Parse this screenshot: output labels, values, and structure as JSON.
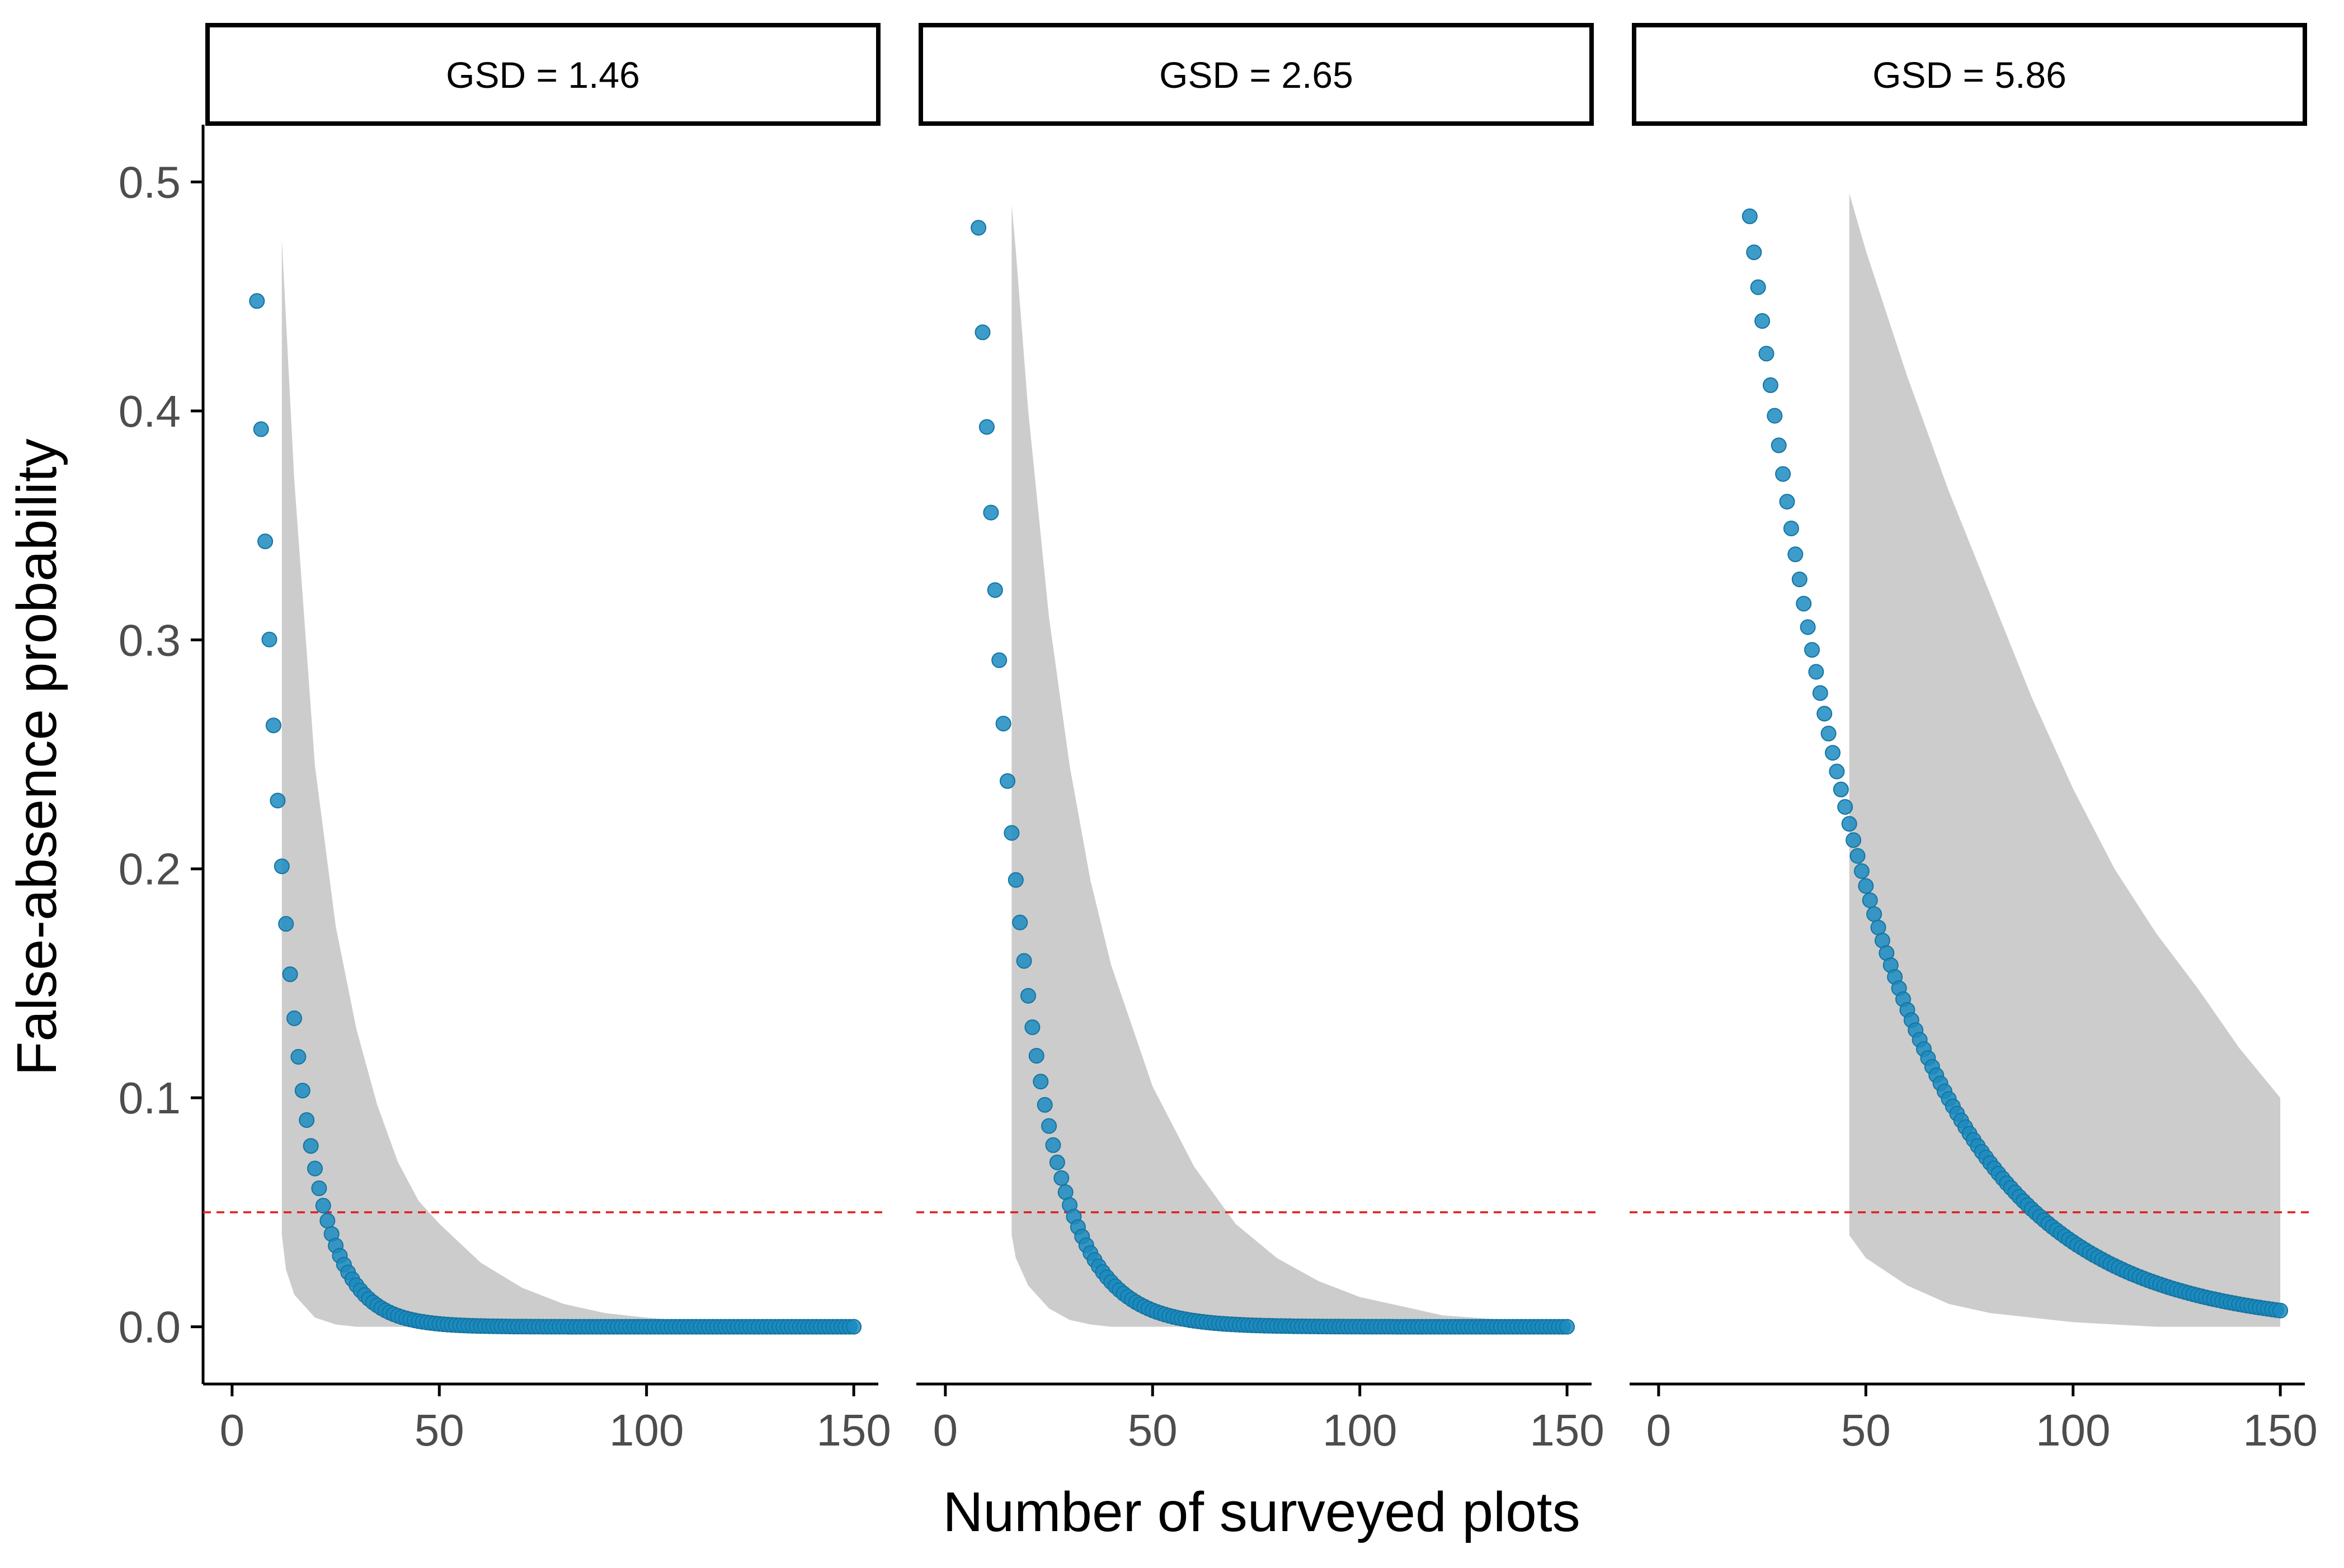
{
  "chart_data": {
    "type": "scatter",
    "xlabel": "Number of surveyed plots",
    "ylabel": "False-absence probability",
    "xlim": [
      -7,
      157
    ],
    "ylim": [
      -0.025,
      0.525
    ],
    "x_ticks": [
      0,
      50,
      100,
      150
    ],
    "x_tick_labels": [
      "0",
      "50",
      "100",
      "150"
    ],
    "y_ticks": [
      0.0,
      0.1,
      0.2,
      0.3,
      0.4,
      0.5
    ],
    "y_tick_labels": [
      "0.0",
      "0.1",
      "0.2",
      "0.3",
      "0.4",
      "0.5"
    ],
    "grid": false,
    "reference_line": {
      "y": 0.05,
      "color": "#e41a1c",
      "style": "dashed"
    },
    "colors": {
      "points": "#1b8bbf",
      "band": "#cccccc",
      "axis": "#000000",
      "tick_text": "#4d4d4d"
    },
    "panels": [
      {
        "label": "GSD = 1.46",
        "points": {
          "x_start": 6,
          "x_end": 150,
          "y_at_start": 0.448,
          "decay_per_plot": 0.1335
        },
        "band": {
          "x": [
            12,
            13,
            15,
            20,
            25,
            30,
            35,
            40,
            45,
            50,
            60,
            70,
            80,
            90,
            100,
            120,
            150
          ],
          "upper": [
            0.475,
            0.44,
            0.37,
            0.245,
            0.175,
            0.13,
            0.097,
            0.072,
            0.055,
            0.045,
            0.028,
            0.017,
            0.01,
            0.006,
            0.004,
            0.001,
            0.0
          ],
          "lower": [
            0.04,
            0.025,
            0.014,
            0.004,
            0.001,
            0.0,
            0.0,
            0.0,
            0.0,
            0.0,
            0.0,
            0.0,
            0.0,
            0.0,
            0.0,
            0.0,
            0.0
          ]
        }
      },
      {
        "label": "GSD = 2.65",
        "points": {
          "x_start": 8,
          "x_end": 150,
          "y_at_start": 0.48,
          "decay_per_plot": 0.1
        },
        "band": {
          "x": [
            16,
            17,
            20,
            25,
            30,
            35,
            40,
            50,
            60,
            70,
            80,
            90,
            100,
            120,
            150
          ],
          "upper": [
            0.49,
            0.47,
            0.4,
            0.31,
            0.245,
            0.195,
            0.158,
            0.105,
            0.07,
            0.045,
            0.03,
            0.02,
            0.013,
            0.005,
            0.001
          ],
          "lower": [
            0.04,
            0.03,
            0.018,
            0.008,
            0.003,
            0.001,
            0.0,
            0.0,
            0.0,
            0.0,
            0.0,
            0.0,
            0.0,
            0.0,
            0.0
          ]
        }
      },
      {
        "label": "GSD = 5.86",
        "points": {
          "x_start": 22,
          "x_end": 150,
          "y_at_start": 0.485,
          "decay_per_plot": 0.033
        },
        "band": {
          "x": [
            46,
            50,
            60,
            70,
            80,
            90,
            100,
            110,
            120,
            130,
            140,
            150
          ],
          "upper": [
            0.495,
            0.47,
            0.415,
            0.365,
            0.32,
            0.275,
            0.235,
            0.2,
            0.172,
            0.148,
            0.122,
            0.1
          ],
          "lower": [
            0.04,
            0.03,
            0.018,
            0.01,
            0.006,
            0.004,
            0.002,
            0.001,
            0.0,
            0.0,
            0.0,
            0.0
          ]
        }
      }
    ]
  }
}
